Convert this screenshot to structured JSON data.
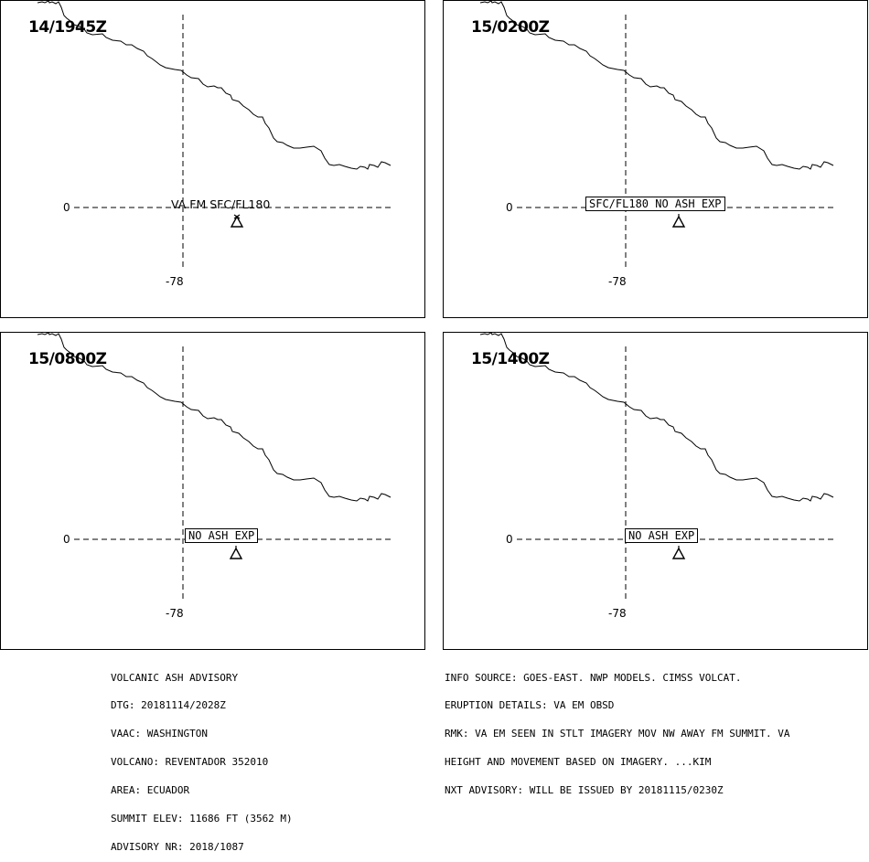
{
  "panels": [
    {
      "time": "14/1945Z",
      "lat_label": "0",
      "lon_label": "-78",
      "ash_label": "VA FM SFC/FL180",
      "ash_label_style": "plain"
    },
    {
      "time": "15/0200Z",
      "lat_label": "0",
      "lon_label": "-78",
      "ash_label": "SFC/FL180 NO ASH EXP",
      "ash_label_style": "boxed"
    },
    {
      "time": "15/0800Z",
      "lat_label": "0",
      "lon_label": "-78",
      "ash_label": "NO ASH EXP",
      "ash_label_style": "boxed"
    },
    {
      "time": "15/1400Z",
      "lat_label": "0",
      "lon_label": "-78",
      "ash_label": "NO ASH EXP",
      "ash_label_style": "boxed"
    }
  ],
  "footer_left": [
    "VOLCANIC ASH ADVISORY",
    "DTG: 20181114/2028Z",
    "VAAC: WASHINGTON",
    "VOLCANO: REVENTADOR 352010",
    "AREA: ECUADOR",
    "SUMMIT ELEV: 11686 FT (3562 M)",
    "ADVISORY NR: 2018/1087"
  ],
  "footer_right": [
    "INFO SOURCE: GOES-EAST. NWP MODELS. CIMSS VOLCAT.",
    "ERUPTION DETAILS: VA EM OBSD",
    "RMK: VA EM SEEN IN STLT IMAGERY MOV NW AWAY FM SUMMIT. VA",
    "HEIGHT AND MOVEMENT BASED ON IMAGERY. ...KIM",
    "NXT ADVISORY: WILL BE ISSUED BY 20181115/0230Z"
  ],
  "map_symbols": {
    "volcano": "volcano-triangle-icon",
    "coastline": "coastline"
  }
}
